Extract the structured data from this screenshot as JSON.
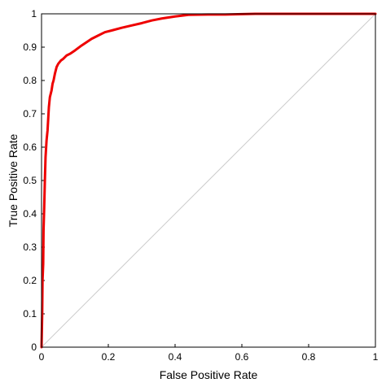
{
  "chart_data": {
    "type": "line",
    "title": "",
    "xlabel": "False Positive Rate",
    "ylabel": "True Positive Rate",
    "xlim": [
      0,
      1
    ],
    "ylim": [
      0,
      1
    ],
    "x_ticks": [
      "0",
      "0.2",
      "0.4",
      "0.6",
      "0.8",
      "1"
    ],
    "y_ticks": [
      "0",
      "0.1",
      "0.2",
      "0.3",
      "0.4",
      "0.5",
      "0.6",
      "0.7",
      "0.8",
      "0.9",
      "1"
    ],
    "grid": false,
    "legend": "none",
    "reference_line": {
      "x": [
        0,
        1
      ],
      "y": [
        0,
        1
      ],
      "color": "#cccccc"
    },
    "series": [
      {
        "color": "#ee0000",
        "x": [
          0,
          0.002,
          0.003,
          0.005,
          0.006,
          0.008,
          0.01,
          0.012,
          0.015,
          0.018,
          0.022,
          0.025,
          0.03,
          0.033,
          0.036,
          0.04,
          0.045,
          0.05,
          0.058,
          0.065,
          0.075,
          0.085,
          0.1,
          0.12,
          0.135,
          0.15,
          0.17,
          0.19,
          0.21,
          0.24,
          0.27,
          0.3,
          0.33,
          0.36,
          0.4,
          0.44,
          0.5,
          0.55,
          0.6,
          0.64,
          0.7,
          0.8,
          0.9,
          1
        ],
        "y": [
          0,
          0.1,
          0.2,
          0.25,
          0.35,
          0.42,
          0.5,
          0.57,
          0.62,
          0.65,
          0.72,
          0.75,
          0.77,
          0.79,
          0.8,
          0.82,
          0.84,
          0.85,
          0.86,
          0.865,
          0.875,
          0.88,
          0.89,
          0.905,
          0.915,
          0.925,
          0.935,
          0.945,
          0.95,
          0.958,
          0.965,
          0.972,
          0.98,
          0.986,
          0.992,
          0.997,
          0.998,
          0.998,
          0.999,
          1,
          1,
          1,
          1,
          1
        ]
      }
    ]
  }
}
